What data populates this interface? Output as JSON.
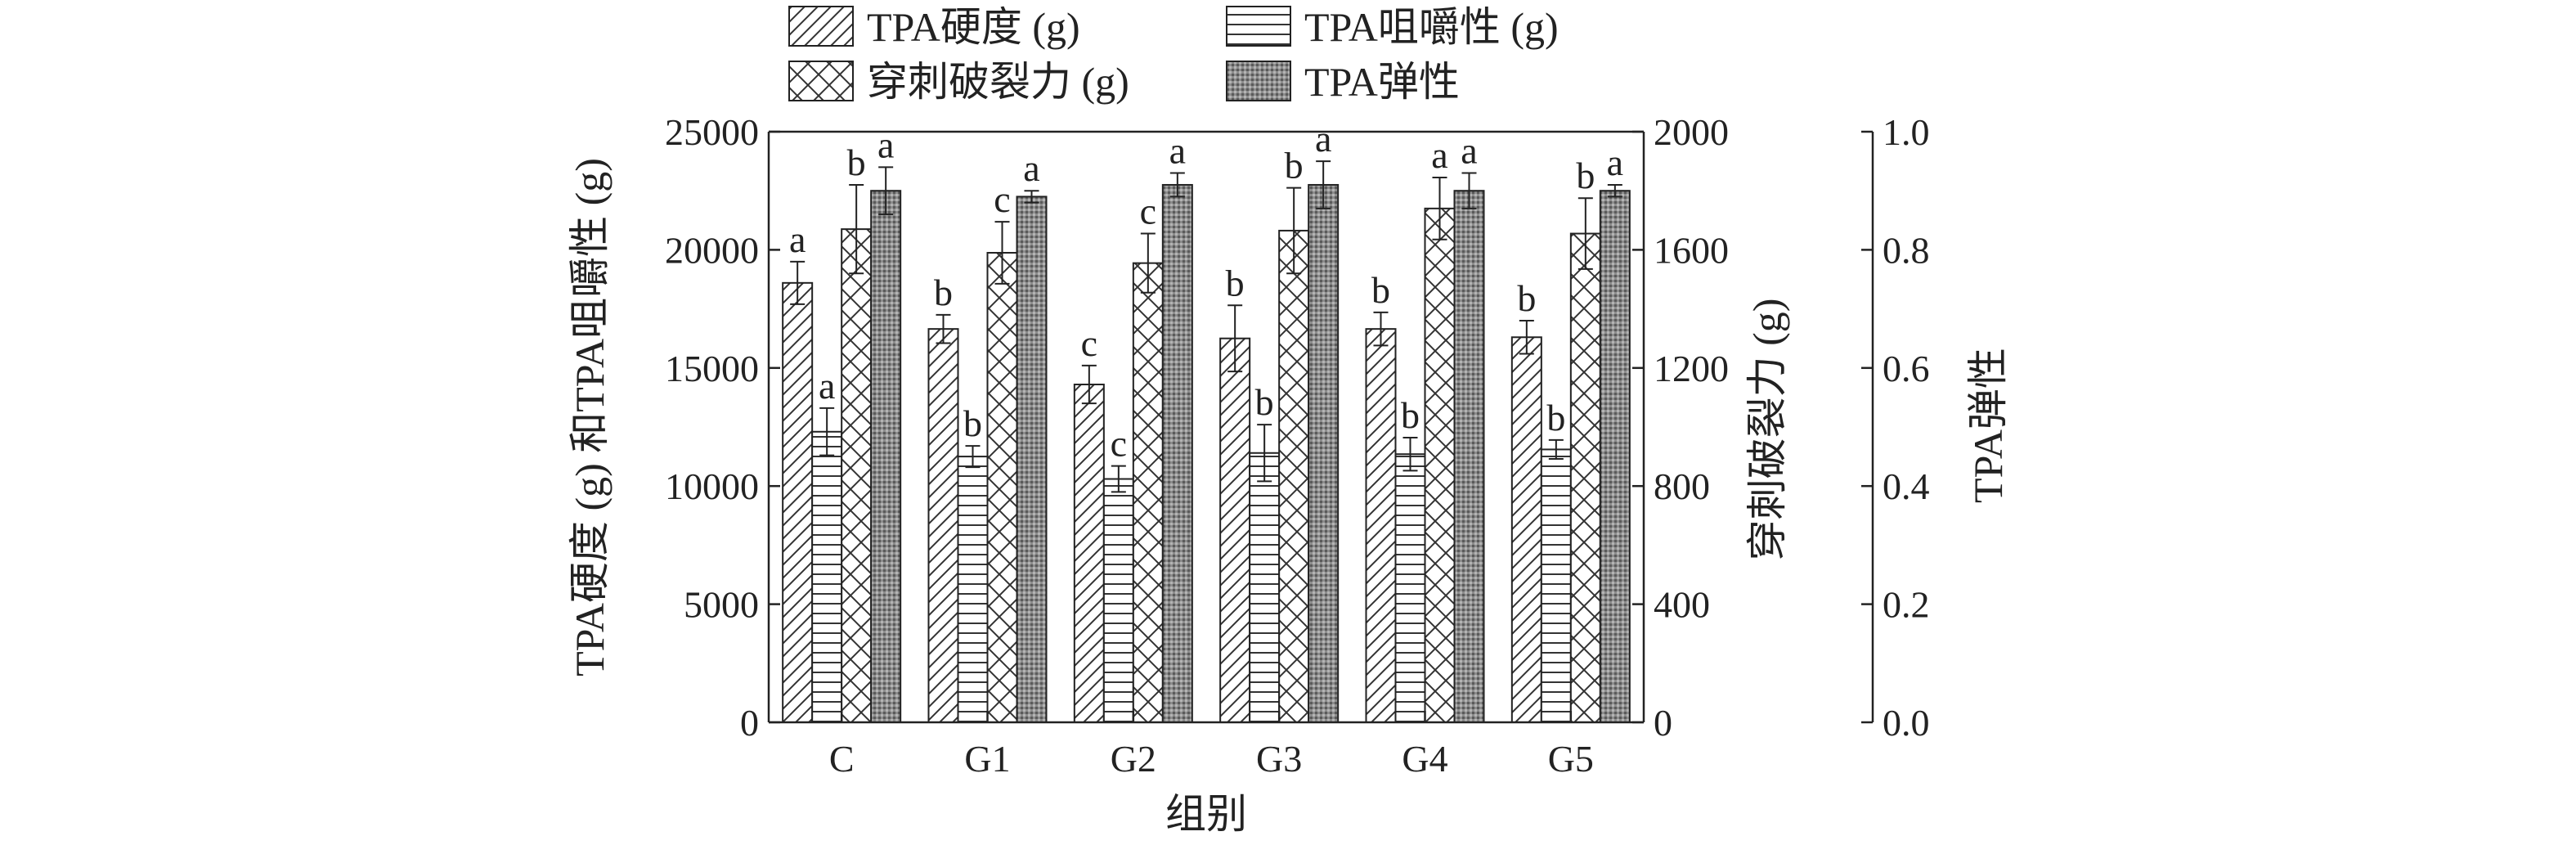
{
  "chart_data": {
    "type": "bar",
    "title": "",
    "xlabel": "组别",
    "ylabel": "TPA硬度 (g) 和TPA咀嚼性 (g)",
    "y2label": "穿刺破裂力 (g)",
    "y3label": "TPA弹性",
    "categories": [
      "C",
      "G1",
      "G2",
      "G3",
      "G4",
      "G5"
    ],
    "ylim": [
      0,
      25000
    ],
    "y2lim": [
      0,
      2000
    ],
    "y3lim": [
      0,
      1.0
    ],
    "yticks": [
      "0",
      "5000",
      "10000",
      "15000",
      "20000",
      "25000"
    ],
    "y2ticks": [
      "0",
      "400",
      "800",
      "1200",
      "1600",
      "2000"
    ],
    "y3ticks": [
      "0.0",
      "0.2",
      "0.4",
      "0.6",
      "0.8",
      "1.0"
    ],
    "legend_position": "top",
    "grid": false,
    "series": [
      {
        "name": "TPA硬度 (g)",
        "axis": "left",
        "pattern": "diagonal-hatch",
        "values": [
          18600,
          16650,
          14300,
          16250,
          16650,
          16300
        ],
        "errors": [
          900,
          600,
          800,
          1400,
          700,
          700
        ],
        "labels": [
          "a",
          "b",
          "c",
          "b",
          "b",
          "b"
        ]
      },
      {
        "name": "TPA咀嚼性 (g)",
        "axis": "left",
        "pattern": "horizontal-lines",
        "values": [
          12300,
          11250,
          10300,
          11400,
          11350,
          11550
        ],
        "errors": [
          1000,
          450,
          550,
          1200,
          700,
          400
        ],
        "labels": [
          "a",
          "b",
          "c",
          "b",
          "b",
          "b"
        ]
      },
      {
        "name": "穿刺破裂力 (g)",
        "axis": "right",
        "pattern": "cross-hatch",
        "values": [
          1670,
          1590,
          1555,
          1665,
          1740,
          1655
        ],
        "errors": [
          150,
          105,
          100,
          145,
          105,
          120
        ],
        "labels": [
          "b",
          "c",
          "c",
          "b",
          "a",
          "b"
        ]
      },
      {
        "name": "TPA弹性",
        "axis": "right2",
        "pattern": "dense-dots",
        "values": [
          0.9,
          0.89,
          0.91,
          0.91,
          0.9,
          0.9
        ],
        "errors": [
          0.04,
          0.01,
          0.02,
          0.04,
          0.03,
          0.01
        ],
        "labels": [
          "a",
          "a",
          "a",
          "a",
          "a",
          "a"
        ]
      }
    ]
  }
}
